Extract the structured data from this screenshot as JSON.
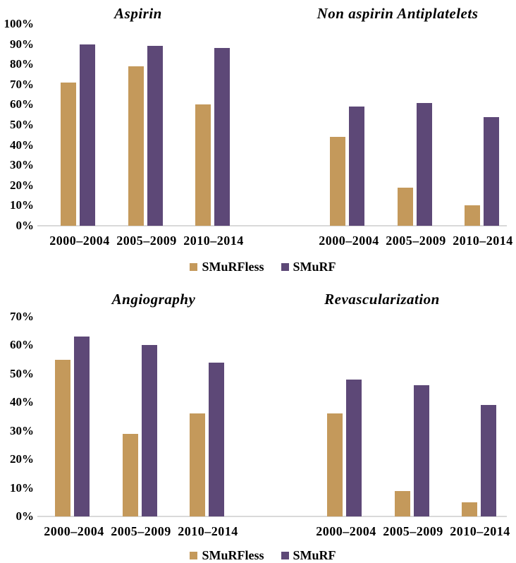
{
  "figure": {
    "background": "#FFFFFF",
    "axis_line_color": "#D9D9D9",
    "text_color": "#000000"
  },
  "legend": {
    "items": [
      {
        "label": "SMuRFless",
        "color": "#C4995B"
      },
      {
        "label": "SMuRF",
        "color": "#5D4877"
      }
    ]
  },
  "chart_data": [
    {
      "type": "bar",
      "title": "Aspirin",
      "categories": [
        "2000–2004",
        "2005–2009",
        "2010–2014"
      ],
      "series": [
        {
          "name": "SMuRFless",
          "color": "#C4995B",
          "values": [
            71,
            79,
            60
          ]
        },
        {
          "name": "SMuRF",
          "color": "#5D4877",
          "values": [
            90,
            89,
            88
          ]
        }
      ],
      "ylim": [
        0,
        100
      ],
      "ytick_step": 10,
      "ytick_suffix": "%",
      "show_y_axis_labels": true,
      "grid": false,
      "legend_position": "bottom-shared"
    },
    {
      "type": "bar",
      "title": "Non aspirin Antiplatelets",
      "categories": [
        "2000–2004",
        "2005–2009",
        "2010–2014"
      ],
      "series": [
        {
          "name": "SMuRFless",
          "color": "#C4995B",
          "values": [
            44,
            19,
            10
          ]
        },
        {
          "name": "SMuRF",
          "color": "#5D4877",
          "values": [
            59,
            61,
            54
          ]
        }
      ],
      "ylim": [
        0,
        100
      ],
      "ytick_step": 10,
      "ytick_suffix": "%",
      "show_y_axis_labels": false,
      "grid": false,
      "legend_position": "bottom-shared"
    },
    {
      "type": "bar",
      "title": "Angiography",
      "categories": [
        "2000–2004",
        "2005–2009",
        "2010–2014"
      ],
      "series": [
        {
          "name": "SMuRFless",
          "color": "#C4995B",
          "values": [
            55,
            29,
            36
          ]
        },
        {
          "name": "SMuRF",
          "color": "#5D4877",
          "values": [
            63,
            60,
            54
          ]
        }
      ],
      "ylim": [
        0,
        70
      ],
      "ytick_step": 10,
      "ytick_suffix": "%",
      "show_y_axis_labels": true,
      "grid": false,
      "legend_position": "bottom-shared"
    },
    {
      "type": "bar",
      "title": "Revascularization",
      "categories": [
        "2000–2004",
        "2005–2009",
        "2010–2014"
      ],
      "series": [
        {
          "name": "SMuRFless",
          "color": "#C4995B",
          "values": [
            36,
            9,
            5
          ]
        },
        {
          "name": "SMuRF",
          "color": "#5D4877",
          "values": [
            48,
            46,
            39
          ]
        }
      ],
      "ylim": [
        0,
        70
      ],
      "ytick_step": 10,
      "ytick_suffix": "%",
      "show_y_axis_labels": false,
      "grid": false,
      "legend_position": "bottom-shared"
    }
  ]
}
